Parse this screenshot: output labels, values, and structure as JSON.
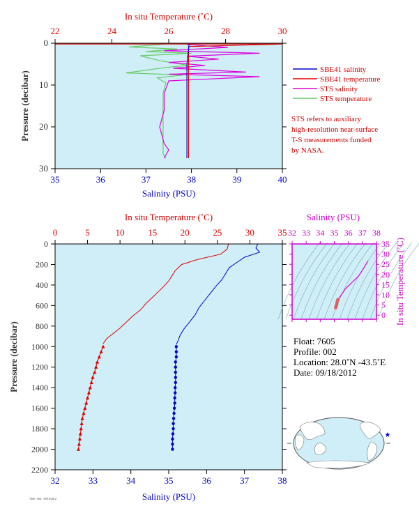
{
  "colors": {
    "plot_bg": "#cfeef7",
    "temperature": "#e00000",
    "salinity": "#0000cc",
    "sts_salinity": "#dd00dd",
    "sts_temperature": "#66cc66",
    "pressure_axis": "#333333",
    "note": "#cc0000",
    "magenta_axis": "#cc00cc"
  },
  "legend": {
    "items": [
      {
        "label": "SBE41 salinity",
        "color": "#0000cc"
      },
      {
        "label": "SBE41 temperature",
        "color": "#e00000"
      },
      {
        "label": "STS salinity",
        "color": "#dd00dd"
      },
      {
        "label": "STS temperature",
        "color": "#66cc66"
      }
    ],
    "note_lines": [
      "STS refers to auxiliary",
      "high-resolution near-surface",
      "T-S measurements funded",
      "by NASA."
    ]
  },
  "float_info": {
    "float": "Float:  7605",
    "profile": "Profile:  002",
    "location": "Location:  28.0˚N  -43.5˚E",
    "date": "Date:  09/18/2012"
  },
  "footer_text": "7605 - 002 - 09/18/2012",
  "chart_data": [
    {
      "type": "line",
      "id": "near-surface",
      "top_axis_label": "In situ Temperature (˚C)",
      "bottom_axis_label": "Salinity (PSU)",
      "ylabel": "Pressure (decibar)",
      "temperature_range": [
        22,
        30
      ],
      "temperature_ticks": [
        "22",
        "24",
        "26",
        "28",
        "30"
      ],
      "salinity_range": [
        35,
        40
      ],
      "salinity_ticks": [
        "35",
        "36",
        "37",
        "38",
        "39",
        "40"
      ],
      "pressure_range": [
        0,
        30
      ],
      "pressure_ticks": [
        "0",
        "10",
        "20",
        "30"
      ],
      "series": [
        {
          "name": "STS temperature",
          "x": [
            25.9,
            24.6,
            26.3,
            25.2,
            26.8,
            25.0,
            25.7,
            26.7,
            25.9,
            24.5,
            26.5,
            25.6,
            25.9,
            25.8,
            25.8,
            25.8,
            25.8,
            25.8,
            25.9
          ],
          "y": [
            0.2,
            0.9,
            1.4,
            2.0,
            2.4,
            3.0,
            4.2,
            5.3,
            5.8,
            7.1,
            7.6,
            8.3,
            9.5,
            12.0,
            16.0,
            20.0,
            24.0,
            26.5,
            27.5
          ]
        },
        {
          "name": "STS salinity",
          "x": [
            37.9,
            38.8,
            37.4,
            39.5,
            37.9,
            38.6,
            37.5,
            38.3,
            37.6,
            39.2,
            37.5,
            39.5,
            37.5,
            37.4,
            37.4,
            37.3,
            37.4,
            37.5,
            37.4
          ],
          "y": [
            0.3,
            1.0,
            1.8,
            2.4,
            3.1,
            3.8,
            4.6,
            5.3,
            6.0,
            6.9,
            7.4,
            8.0,
            9.0,
            12.0,
            16.0,
            20.0,
            24.0,
            25.5,
            27.5
          ]
        },
        {
          "name": "SBE41 temperature",
          "x": [
            22.0,
            30.0,
            26.7,
            26.7,
            26.7,
            26.7,
            26.7
          ],
          "y": [
            0.2,
            0.2,
            0.8,
            5.0,
            10.0,
            20.0,
            27.5
          ]
        },
        {
          "name": "SBE41 salinity",
          "x": [
            37.95,
            37.9,
            37.9,
            37.9,
            37.9
          ],
          "y": [
            0.2,
            5.0,
            10.0,
            20.0,
            27.5
          ]
        }
      ]
    },
    {
      "type": "line",
      "id": "full-profile",
      "top_axis_label": "In situ Temperature (˚C)",
      "bottom_axis_label": "Salinity (PSU)",
      "ylabel": "Pressure (decibar)",
      "temperature_range": [
        0,
        35
      ],
      "temperature_ticks": [
        "0",
        "5",
        "10",
        "15",
        "20",
        "25",
        "30",
        "35"
      ],
      "salinity_range": [
        32,
        38
      ],
      "salinity_ticks": [
        "32",
        "33",
        "34",
        "35",
        "36",
        "37",
        "38"
      ],
      "pressure_range": [
        0,
        2200
      ],
      "pressure_ticks": [
        "0",
        "200",
        "400",
        "600",
        "800",
        "1000",
        "1200",
        "1400",
        "1600",
        "1800",
        "2000",
        "2200"
      ],
      "series": [
        {
          "name": "SBE41 temperature",
          "x": [
            26.7,
            26.5,
            25.5,
            22.0,
            19.5,
            18.5,
            18.0,
            17.5,
            16.8,
            16.0,
            15.0,
            14.0,
            13.2,
            12.0,
            11.0,
            10.0,
            9.0,
            8.0,
            7.4
          ],
          "y": [
            0,
            50,
            100,
            150,
            200,
            260,
            310,
            360,
            410,
            460,
            520,
            580,
            640,
            700,
            760,
            820,
            870,
            920,
            970
          ],
          "points": false
        },
        {
          "name": "SBE41 temperature",
          "x": [
            7.4,
            7.1,
            6.8,
            6.5,
            6.3,
            6.1,
            5.8,
            5.6,
            5.4,
            5.2,
            5.0,
            4.8,
            4.6,
            4.4,
            4.2,
            4.1,
            4.0,
            3.9,
            3.8,
            3.7,
            3.6
          ],
          "y": [
            1000,
            1050,
            1100,
            1150,
            1200,
            1250,
            1300,
            1350,
            1400,
            1450,
            1500,
            1550,
            1600,
            1650,
            1700,
            1750,
            1800,
            1850,
            1900,
            1950,
            2000
          ],
          "points": true
        },
        {
          "name": "SBE41 salinity",
          "x": [
            37.35,
            37.3,
            37.4,
            37.0,
            36.8,
            36.6,
            36.5,
            36.4,
            36.25,
            36.1,
            35.95,
            35.8,
            35.7,
            35.55,
            35.4,
            35.3,
            35.25,
            35.2
          ],
          "y": [
            0,
            40,
            80,
            130,
            180,
            230,
            290,
            350,
            410,
            480,
            550,
            620,
            690,
            760,
            830,
            890,
            940,
            980
          ],
          "points": false
        },
        {
          "name": "SBE41 salinity",
          "x": [
            35.2,
            35.2,
            35.2,
            35.18,
            35.18,
            35.18,
            35.18,
            35.18,
            35.17,
            35.17,
            35.16,
            35.16,
            35.15,
            35.14,
            35.13,
            35.12,
            35.12,
            35.11,
            35.1,
            35.1,
            35.1
          ],
          "y": [
            1000,
            1050,
            1100,
            1150,
            1200,
            1250,
            1300,
            1350,
            1400,
            1450,
            1500,
            1550,
            1600,
            1650,
            1700,
            1750,
            1800,
            1850,
            1900,
            1950,
            2000
          ],
          "points": true
        }
      ]
    },
    {
      "type": "scatter",
      "id": "ts-diagram",
      "top_axis_label": "Salinity (PSU)",
      "right_axis_label": "In situ Temperature (˚C)",
      "salinity_range": [
        32,
        38
      ],
      "salinity_ticks": [
        "32",
        "33",
        "34",
        "35",
        "36",
        "37",
        "38"
      ],
      "temperature_range": [
        -2,
        35
      ],
      "temperature_ticks": [
        "0",
        "5",
        "10",
        "15",
        "20",
        "25",
        "30",
        "35"
      ],
      "series": [
        {
          "name": "T-S profile",
          "x": [
            37.4,
            37.3,
            37.0,
            36.7,
            36.4,
            36.1,
            35.8,
            35.6,
            35.4,
            35.25,
            35.2,
            35.18,
            35.15,
            35.12,
            35.1
          ],
          "y": [
            26.7,
            25.5,
            22.0,
            19.0,
            17.0,
            15.0,
            13.0,
            11.0,
            9.0,
            7.6,
            6.5,
            5.5,
            4.8,
            4.2,
            3.6
          ]
        }
      ]
    }
  ]
}
